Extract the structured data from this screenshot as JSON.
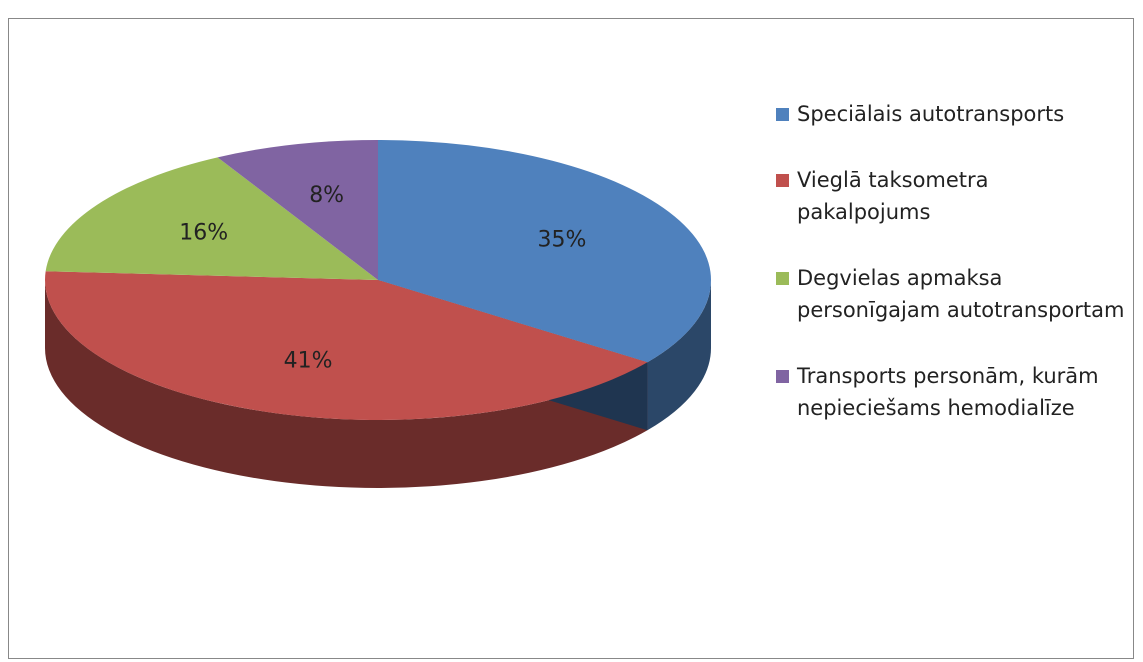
{
  "chart_data": {
    "type": "pie",
    "categories": [
      "Speciālais autotransports",
      "Vieglā taksometra pakalpojums",
      "Degvielas apmaksa personīgajam autotransportam",
      "Transports personām, kurām nepieciešams hemodialīze"
    ],
    "values": [
      35,
      41,
      16,
      8
    ],
    "value_labels": [
      "35%",
      "41%",
      "16%",
      "8%"
    ],
    "colors": [
      "#4f81bd",
      "#c0504d",
      "#9bbb59",
      "#8064a2"
    ],
    "legend": "right"
  }
}
